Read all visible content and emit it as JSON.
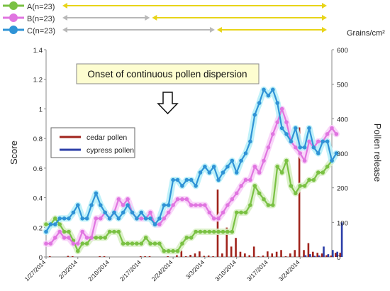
{
  "chart_data": {
    "type": "line",
    "title": "",
    "annotation": "Onset of continuous pollen dispersion",
    "ylabel_left": "Score",
    "ylabel_right": "Pollen release",
    "right_unit": "Grains/cm²",
    "ylim_left": [
      0,
      1.4
    ],
    "ylim_right": [
      0,
      600
    ],
    "y_ticks_left": [
      "0",
      "0.2",
      "0.4",
      "0.6",
      "0.8",
      "1",
      "1.2",
      "1.4"
    ],
    "y_ticks_right": [
      "0",
      "100",
      "200",
      "300",
      "400",
      "500",
      "600"
    ],
    "x_ticks": [
      "1/27/2014",
      "2/3/2014",
      "2/10/2014",
      "2/17/2014",
      "2/24/2014",
      "3/3/2014",
      "3/10/2014",
      "3/17/2014",
      "3/24/2014"
    ],
    "legend_score": [
      "A(n=23)",
      "B(n=23)",
      "C(n=23)"
    ],
    "legend_pollen": [
      "cedar pollen",
      "cypress pollen"
    ],
    "colors": {
      "A": "#7ac143",
      "B": "#e075e0",
      "C": "#2f93d6",
      "cedar": "#a0231c",
      "cypress": "#2c3fa8",
      "gray_arrow": "#b8b8b8",
      "yellow_arrow": "#e8d419"
    },
    "period_bars": [
      {
        "series": "A",
        "gray_from_day": null,
        "yellow_from_day": 0,
        "to_day": 57
      },
      {
        "series": "B",
        "gray_from_day": 0,
        "yellow_from_day": 19,
        "to_day": 57
      },
      {
        "series": "C",
        "gray_from_day": 0,
        "yellow_from_day": 33,
        "to_day": 57
      }
    ],
    "series": [
      {
        "name": "A(n=23)",
        "color": "#7ac143",
        "values": [
          0.22,
          0.22,
          0.26,
          0.22,
          0.17,
          0.17,
          0.11,
          0.04,
          0.09,
          0.09,
          0.13,
          0.13,
          0.13,
          0.13,
          0.17,
          0.17,
          0.17,
          0.09,
          0.09,
          0.09,
          0.09,
          0.09,
          0.13,
          0.09,
          0.09,
          0.09,
          0.04,
          0.04,
          0.04,
          0.04,
          0.09,
          0.13,
          0.13,
          0.17,
          0.17,
          0.17,
          0.17,
          0.17,
          0.17,
          0.17,
          0.17,
          0.17,
          0.3,
          0.3,
          0.3,
          0.35,
          0.48,
          0.43,
          0.39,
          0.35,
          0.35,
          0.61,
          0.57,
          0.65,
          0.48,
          0.43,
          0.48,
          0.48,
          0.52,
          0.52,
          0.57,
          0.57,
          0.61,
          0.65
        ]
      },
      {
        "name": "B(n=23)",
        "color": "#e075e0",
        "values": [
          0.09,
          0.09,
          0.13,
          0.17,
          0.13,
          0.13,
          0.09,
          0.09,
          0.17,
          0.13,
          0.13,
          0.26,
          0.26,
          0.3,
          0.26,
          0.3,
          0.39,
          0.35,
          0.39,
          0.3,
          0.26,
          0.26,
          0.26,
          0.3,
          0.22,
          0.22,
          0.26,
          0.3,
          0.35,
          0.39,
          0.39,
          0.39,
          0.35,
          0.35,
          0.35,
          0.35,
          0.3,
          0.26,
          0.26,
          0.3,
          0.35,
          0.39,
          0.43,
          0.48,
          0.52,
          0.52,
          0.61,
          0.57,
          0.65,
          0.74,
          0.83,
          0.91,
          1.0,
          0.91,
          0.78,
          0.74,
          0.7,
          0.65,
          0.78,
          0.74,
          0.78,
          0.78,
          0.83,
          0.87,
          0.83
        ]
      },
      {
        "name": "C(n=23)",
        "color": "#2f93d6",
        "values": [
          0.17,
          0.22,
          0.22,
          0.26,
          0.26,
          0.26,
          0.3,
          0.35,
          0.26,
          0.26,
          0.35,
          0.43,
          0.35,
          0.3,
          0.26,
          0.3,
          0.26,
          0.3,
          0.35,
          0.3,
          0.26,
          0.3,
          0.26,
          0.26,
          0.22,
          0.26,
          0.35,
          0.35,
          0.52,
          0.52,
          0.48,
          0.52,
          0.52,
          0.48,
          0.57,
          0.61,
          0.57,
          0.61,
          0.52,
          0.57,
          0.61,
          0.65,
          0.57,
          0.65,
          0.7,
          0.78,
          0.96,
          1.04,
          1.13,
          1.09,
          1.13,
          1.04,
          0.87,
          0.83,
          0.78,
          0.87,
          0.74,
          0.74,
          0.87,
          0.74,
          0.7,
          0.78,
          0.78,
          0.65,
          0.7
        ]
      }
    ],
    "pollen_bars": [
      {
        "series": "cedar",
        "days": [
          1,
          5,
          6,
          12,
          13,
          21,
          22,
          23,
          27,
          29,
          30,
          31,
          32,
          33,
          34,
          35,
          36,
          37,
          38,
          39,
          40,
          41,
          42,
          43,
          44,
          45,
          46,
          47,
          48,
          49,
          50,
          51,
          52,
          53,
          54,
          55,
          56,
          57,
          58,
          59,
          60,
          61,
          62,
          63,
          64,
          65
        ],
        "values": [
          2,
          3,
          2,
          2,
          2,
          2,
          2,
          2,
          2,
          5,
          18,
          2,
          6,
          10,
          16,
          3,
          4,
          2,
          195,
          10,
          85,
          30,
          55,
          15,
          10,
          5,
          30,
          2,
          4,
          16,
          10,
          15,
          20,
          2,
          10,
          20,
          375,
          20,
          40,
          15,
          12,
          10,
          5,
          4,
          12,
          12
        ]
      },
      {
        "series": "cypress",
        "days": [
          57,
          58,
          59,
          60,
          61,
          62,
          63,
          64,
          65
        ],
        "values": [
          5,
          8,
          3,
          4,
          30,
          8,
          20,
          15,
          100
        ]
      }
    ]
  }
}
